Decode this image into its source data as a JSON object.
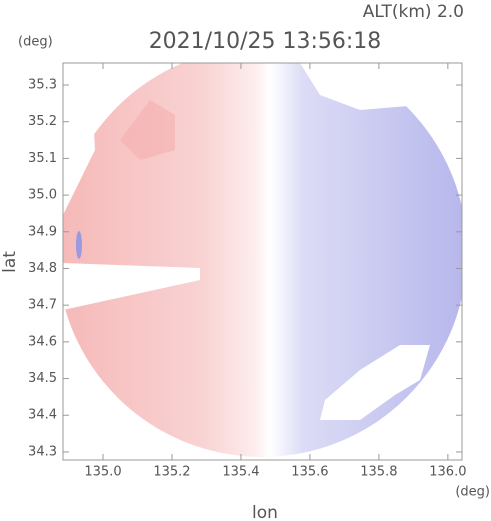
{
  "chart_data": {
    "type": "radar-map",
    "title": "2021/10/25 13:56:18",
    "subtitle": "ALT(km) 2.0",
    "y_unit": "(deg)",
    "x_unit": "(deg)",
    "xlabel": "lon",
    "ylabel": "lat",
    "xlim": [
      134.884,
      136.041
    ],
    "ylim": [
      34.278,
      35.36
    ],
    "xticks": [
      {
        "value": 135.0,
        "label": "135.0"
      },
      135.2,
      135.4,
      135.6,
      135.8,
      {
        "value": 136.0,
        "label": "136.0"
      }
    ],
    "yticks": [
      34.3,
      34.4,
      34.5,
      34.6,
      34.7,
      34.8,
      34.9,
      {
        "value": 35.0,
        "label": "35.0"
      },
      35.1,
      35.2,
      35.3
    ]
  }
}
